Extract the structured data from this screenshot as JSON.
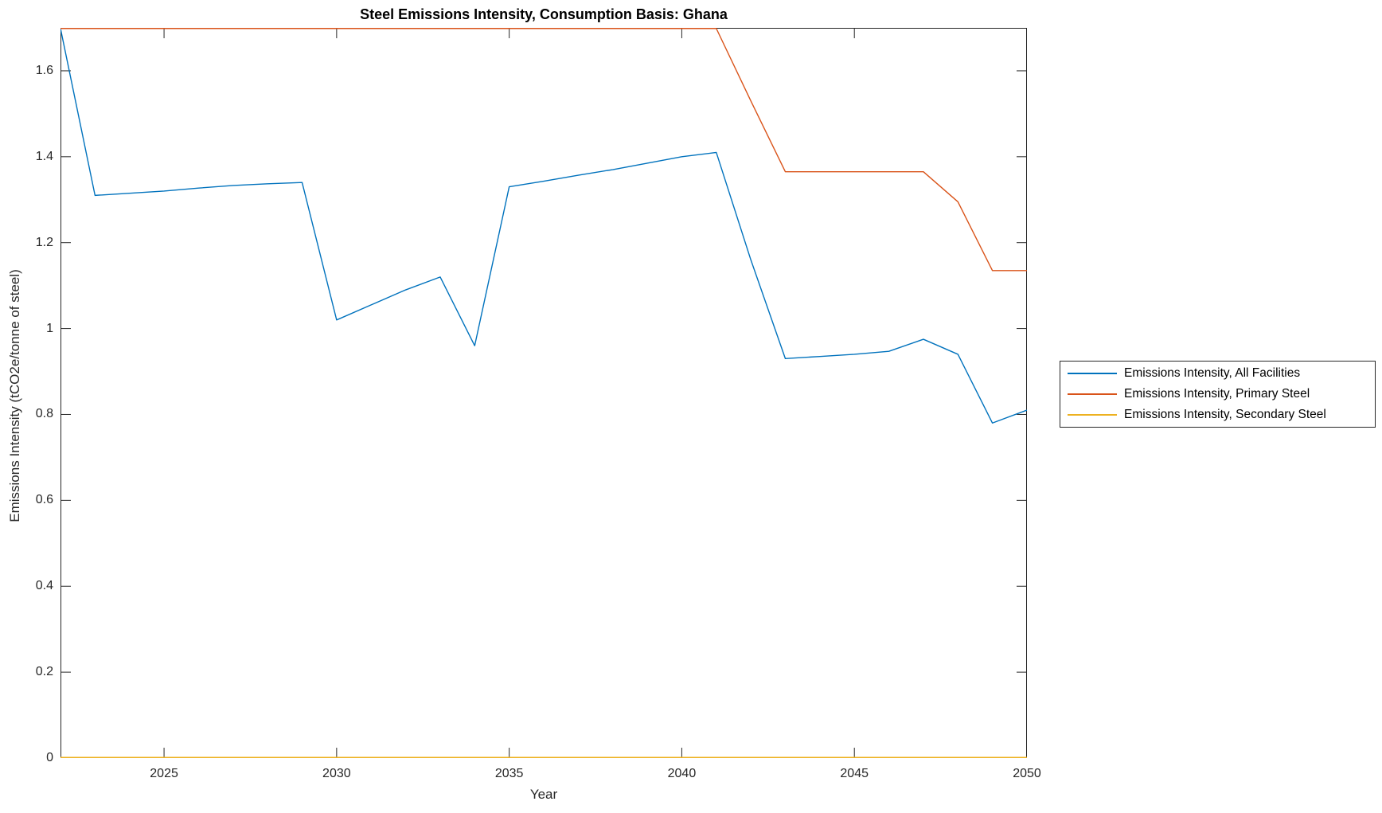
{
  "figure": {
    "background": "#ffffff",
    "axes_color": "#262626",
    "text_color": "#262626"
  },
  "chart_data": {
    "type": "line",
    "title": "Steel Emissions Intensity, Consumption Basis: Ghana",
    "xlabel": "Year",
    "ylabel": "Emissions Intensity (tCO2e/tonne of steel)",
    "xlim": [
      2022,
      2050
    ],
    "ylim": [
      0,
      1.7
    ],
    "x_ticks": [
      2025,
      2030,
      2035,
      2040,
      2045,
      2050
    ],
    "y_ticks": [
      0,
      0.2,
      0.4,
      0.6,
      0.8,
      1,
      1.2,
      1.4,
      1.6
    ],
    "grid": false,
    "legend_position": "outside-right-middle",
    "x": [
      2022,
      2023,
      2024,
      2025,
      2026,
      2027,
      2028,
      2029,
      2030,
      2031,
      2032,
      2033,
      2034,
      2035,
      2036,
      2037,
      2038,
      2039,
      2040,
      2041,
      2042,
      2043,
      2044,
      2045,
      2046,
      2047,
      2048,
      2049,
      2050
    ],
    "series": [
      {
        "name": "Emissions Intensity, All Facilities",
        "color": "#0072BD",
        "values": [
          1.7,
          1.31,
          1.315,
          1.32,
          1.327,
          1.333,
          1.337,
          1.34,
          1.02,
          1.055,
          1.09,
          1.12,
          0.96,
          1.33,
          1.343,
          1.357,
          1.37,
          1.385,
          1.4,
          1.41,
          1.16,
          0.93,
          0.935,
          0.94,
          0.947,
          0.975,
          0.94,
          0.78,
          0.81
        ]
      },
      {
        "name": "Emissions Intensity, Primary Steel",
        "color": "#D95319",
        "values": [
          1.7,
          1.7,
          1.7,
          1.7,
          1.7,
          1.7,
          1.7,
          1.7,
          1.7,
          1.7,
          1.7,
          1.7,
          1.7,
          1.7,
          1.7,
          1.7,
          1.7,
          1.7,
          1.7,
          1.7,
          1.53,
          1.365,
          1.365,
          1.365,
          1.365,
          1.365,
          1.295,
          1.135,
          1.135
        ],
        "clipped_note": "runs along top axis edge (at/above 1.7) from 2022 through 2041"
      },
      {
        "name": "Emissions Intensity, Secondary Steel",
        "color": "#EDB120",
        "values": [
          0,
          0,
          0,
          0,
          0,
          0,
          0,
          0,
          0,
          0,
          0,
          0,
          0,
          0,
          0,
          0,
          0,
          0,
          0,
          0,
          0,
          0,
          0,
          0,
          0,
          0,
          0,
          0,
          0
        ]
      }
    ]
  }
}
